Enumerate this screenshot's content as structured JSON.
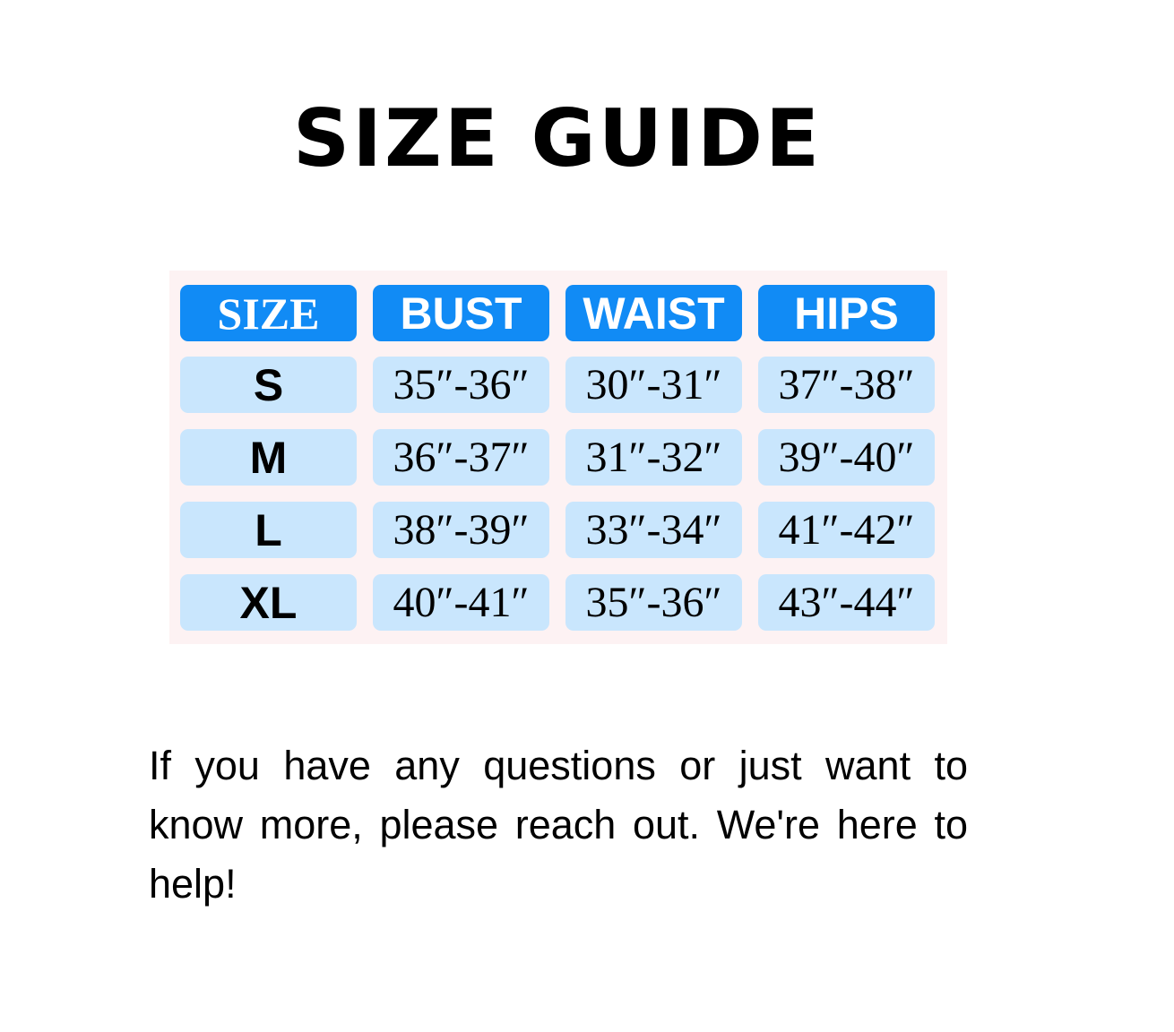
{
  "title": "SIZE GUIDE",
  "table": {
    "headers": [
      "SIZE",
      "BUST",
      "WAIST",
      "HIPS"
    ],
    "rows": [
      [
        "S",
        "35″-36″",
        "30″-31″",
        "37″-38″"
      ],
      [
        "M",
        "36″-37″",
        "31″-32″",
        "39″-40″"
      ],
      [
        "L",
        "38″-39″",
        "33″-34″",
        "41″-42″"
      ],
      [
        "XL",
        "40″-41″",
        "35″-36″",
        "43″-44″"
      ]
    ]
  },
  "message": "If you have any questions or just want to know more, please reach out. We're here to help!",
  "colors": {
    "header": "#118bf5",
    "cell": "#c9e6fd",
    "panel": "#fdf2f3"
  }
}
